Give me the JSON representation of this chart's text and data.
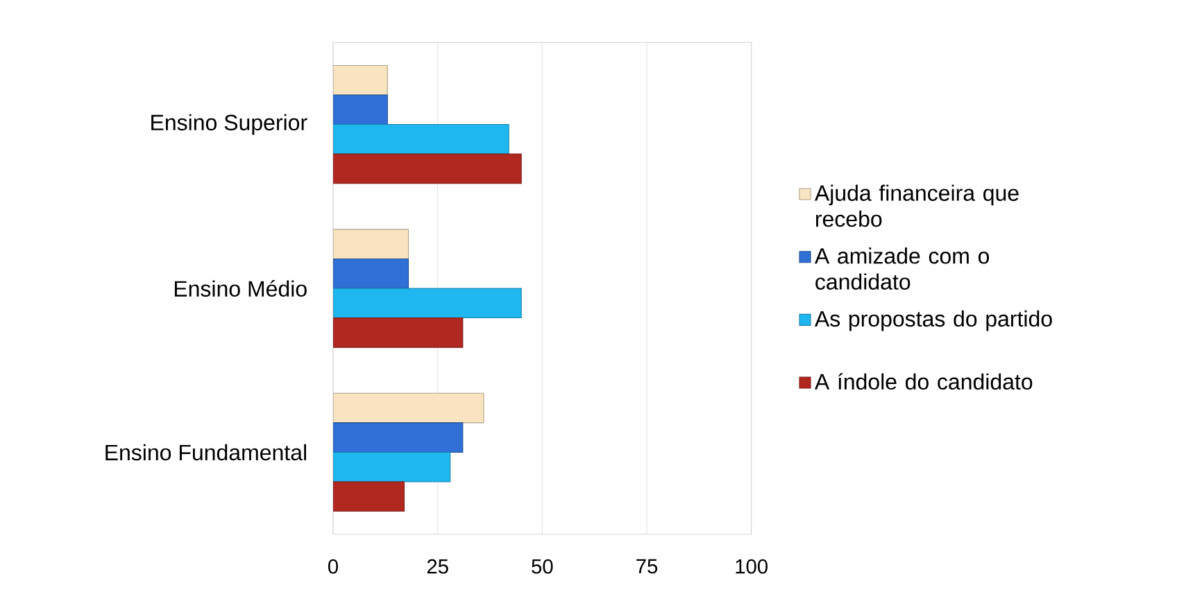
{
  "chart_data": {
    "type": "bar",
    "orientation": "horizontal",
    "categories": [
      "Ensino Superior",
      "Ensino Médio",
      "Ensino Fundamental"
    ],
    "series": [
      {
        "name": "Ajuda financeira que recebo",
        "color": "#f8e4c0",
        "values": [
          13,
          18,
          36
        ]
      },
      {
        "name": "A amizade com o candidato",
        "color": "#2f6fd6",
        "values": [
          13,
          18,
          31
        ]
      },
      {
        "name": "As propostas do partido",
        "color": "#1fb7f0",
        "values": [
          42,
          45,
          28
        ]
      },
      {
        "name": "A índole do candidato",
        "color": "#b0281f",
        "values": [
          45,
          31,
          17
        ]
      }
    ],
    "xlim": [
      0,
      100
    ],
    "xticks": [
      0,
      25,
      50,
      75,
      100
    ],
    "grid": "x",
    "legend": "right"
  }
}
